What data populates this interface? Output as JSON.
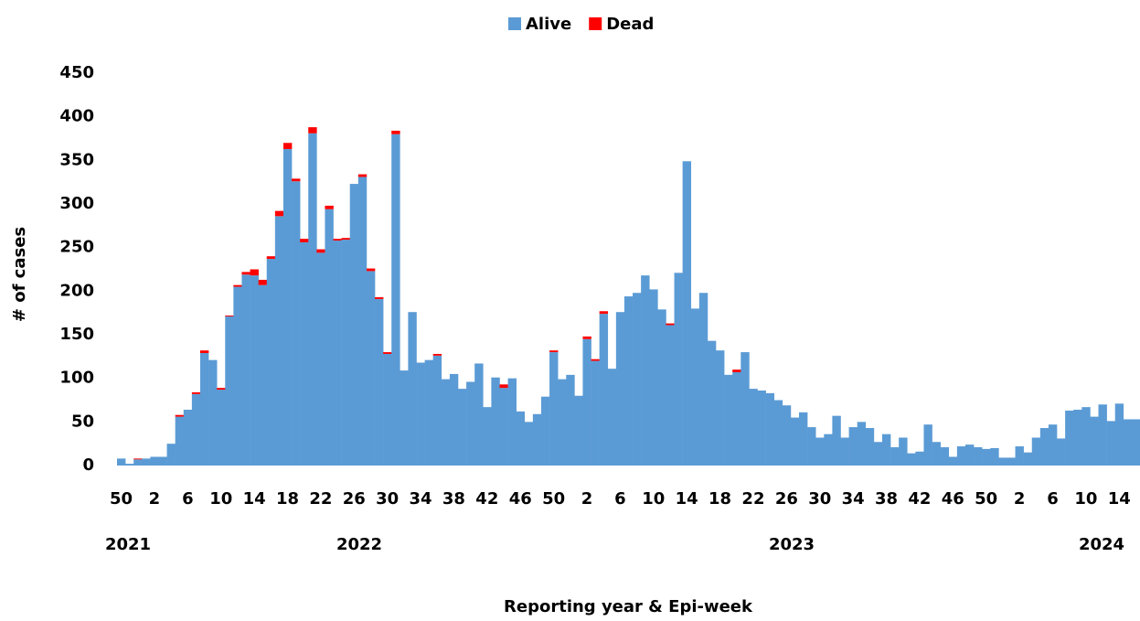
{
  "chart_data": {
    "type": "stacked_bar",
    "x_label": "Reporting year & Epi-week",
    "y_label": "# of cases",
    "year_labels": [
      "2021",
      "2022",
      "2023",
      "2024"
    ],
    "categories": [
      "50",
      null,
      null,
      null,
      "2",
      null,
      null,
      null,
      "6",
      null,
      null,
      null,
      "10",
      null,
      null,
      null,
      "14",
      null,
      null,
      null,
      "18",
      null,
      null,
      null,
      "22",
      null,
      null,
      null,
      "26",
      null,
      null,
      null,
      "30",
      null,
      null,
      null,
      "34",
      null,
      null,
      null,
      "38",
      null,
      null,
      null,
      "42",
      null,
      null,
      null,
      "46",
      null,
      null,
      null,
      "50",
      null,
      null,
      null,
      "2",
      null,
      null,
      null,
      "6",
      null,
      null,
      null,
      "10",
      null,
      null,
      null,
      "14",
      null,
      null,
      null,
      "18",
      null,
      null,
      null,
      "22",
      null,
      null,
      null,
      "26",
      null,
      null,
      null,
      "30",
      null,
      null,
      null,
      "34",
      null,
      null,
      null,
      "38",
      null,
      null,
      null,
      "42",
      null,
      null,
      null,
      "46",
      null,
      null,
      null,
      "50",
      null,
      null,
      null,
      "2",
      null,
      null,
      null,
      "6",
      null,
      null,
      null,
      "10",
      null,
      null,
      null,
      "14",
      null,
      null
    ],
    "series": [
      {
        "name": "Alive",
        "color": "#5b9bd5",
        "values": [
          8,
          2,
          7,
          8,
          10,
          10,
          25,
          56,
          64,
          82,
          129,
          121,
          87,
          171,
          205,
          219,
          218,
          207,
          237,
          286,
          363,
          326,
          256,
          381,
          244,
          294,
          258,
          259,
          323,
          331,
          223,
          191,
          128,
          380,
          109,
          176,
          118,
          121,
          126,
          99,
          105,
          88,
          96,
          117,
          67,
          101,
          89,
          100,
          62,
          50,
          59,
          79,
          130,
          99,
          104,
          80,
          145,
          120,
          174,
          111,
          176,
          194,
          198,
          218,
          202,
          179,
          161,
          221,
          349,
          180,
          198,
          143,
          132,
          104,
          107,
          130,
          88,
          86,
          83,
          75,
          69,
          55,
          61,
          44,
          32,
          36,
          57,
          32,
          44,
          50,
          43,
          27,
          36,
          21,
          32,
          14,
          16,
          47,
          27,
          21,
          10,
          22,
          24,
          21,
          19,
          20,
          9,
          9,
          22,
          15,
          32,
          43,
          47,
          31,
          63,
          64,
          67,
          56,
          70,
          51,
          71,
          53,
          53
        ]
      },
      {
        "name": "Dead",
        "color": "#ff0000",
        "values": [
          0,
          0,
          1,
          0,
          0,
          0,
          0,
          2,
          0,
          2,
          3,
          0,
          2,
          1,
          2,
          3,
          7,
          6,
          3,
          6,
          7,
          3,
          4,
          7,
          4,
          4,
          2,
          2,
          0,
          3,
          3,
          2,
          2,
          4,
          0,
          0,
          0,
          0,
          2,
          0,
          0,
          0,
          0,
          0,
          0,
          0,
          4,
          0,
          0,
          0,
          0,
          0,
          2,
          0,
          0,
          0,
          3,
          2,
          3,
          0,
          0,
          0,
          0,
          0,
          0,
          0,
          2,
          0,
          0,
          0,
          0,
          0,
          0,
          0,
          3,
          0,
          0,
          0,
          0,
          0,
          0,
          0,
          0,
          0,
          0,
          0,
          0,
          0,
          0,
          0,
          0,
          0,
          0,
          0,
          0,
          0,
          0,
          0,
          0,
          0,
          0,
          0,
          0,
          0,
          0,
          0,
          0,
          0,
          0,
          0,
          0,
          0,
          0,
          0,
          0,
          0,
          0,
          0,
          0,
          0,
          0,
          0,
          0
        ]
      }
    ],
    "ylim": [
      0,
      450
    ],
    "yticks": [
      0,
      50,
      100,
      150,
      200,
      250,
      300,
      350,
      400,
      450
    ],
    "grid": false,
    "legend": "top"
  }
}
